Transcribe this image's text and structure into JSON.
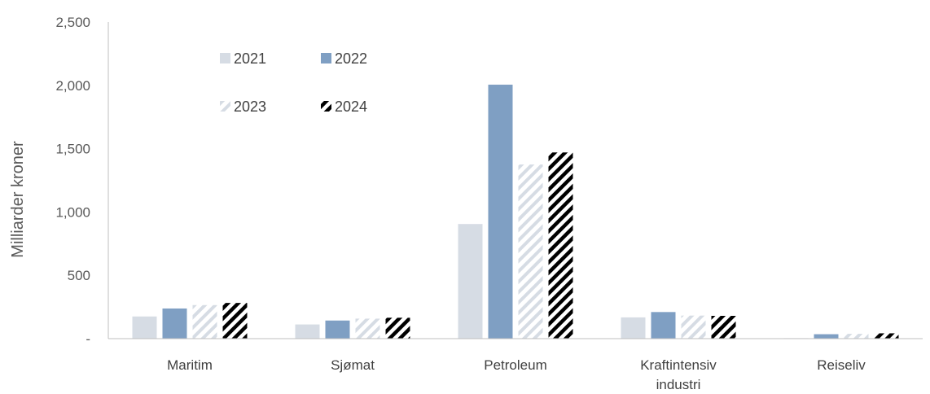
{
  "chart_data": {
    "type": "bar",
    "title": "",
    "ylabel": "Milliarder kroner",
    "xlabel": "",
    "ylim": [
      0,
      2500
    ],
    "yticks": [
      0,
      500,
      1000,
      1500,
      2000,
      2500
    ],
    "ytick_labels": [
      "-",
      "500",
      "1,000",
      "1,500",
      "2,000",
      "2,500"
    ],
    "grid": false,
    "legend_position": "top-left",
    "categories": [
      [
        "Maritim"
      ],
      [
        "Sjømat"
      ],
      [
        "Petroleum"
      ],
      [
        "Kraftintensiv",
        "industri"
      ],
      [
        "Reiseliv"
      ]
    ],
    "series": [
      {
        "name": "2021",
        "values": [
          175,
          112,
          905,
          168,
          4
        ],
        "color": "#d6dce4",
        "pattern": "solid"
      },
      {
        "name": "2022",
        "values": [
          238,
          143,
          2005,
          210,
          35
        ],
        "color": "#7f9fc3",
        "pattern": "solid"
      },
      {
        "name": "2023",
        "values": [
          265,
          158,
          1375,
          182,
          38
        ],
        "color": "#d6dce4",
        "pattern": "hatch-light"
      },
      {
        "name": "2024",
        "values": [
          282,
          165,
          1470,
          180,
          42
        ],
        "color": "#000000",
        "pattern": "hatch-dark"
      }
    ]
  }
}
